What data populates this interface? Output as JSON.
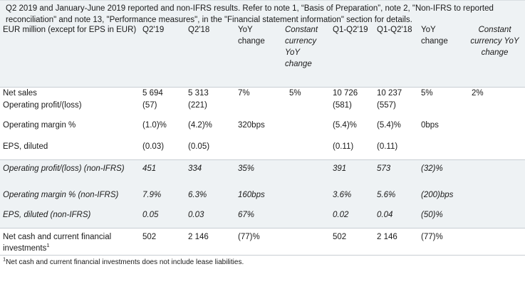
{
  "intro": "Q2 2019 and January-June 2019 reported and non-IFRS results. Refer to note 1, “Basis of Preparation”, note 2, \"Non-IFRS to reported reconciliation\" and note 13, \"Performance measures\", in the \"Financial statement information\" section for details.",
  "columns": [
    "EUR million (except for EPS in EUR)",
    "Q2'19",
    "Q2'18",
    "YoY change",
    "Constant currency YoY change",
    "Q1-Q2'19",
    "Q1-Q2'18",
    "YoY change",
    "Constant currency YoY change"
  ],
  "rows": [
    {
      "label": "Net sales",
      "cells": [
        "5 694",
        "5 313",
        "7%",
        "5%",
        "10 726",
        "10 237",
        "5%",
        "2%"
      ]
    },
    {
      "label": "Operating profit/(loss)",
      "cells": [
        "(57)",
        "(221)",
        "",
        "",
        "(581)",
        "(557)",
        "",
        ""
      ]
    },
    {
      "label": "Operating margin %",
      "cells": [
        "(1.0)%",
        "(4.2)%",
        "320bps",
        "",
        "(5.4)%",
        "(5.4)%",
        "0bps",
        ""
      ]
    },
    {
      "label": "EPS, diluted",
      "cells": [
        "(0.03)",
        "(0.05)",
        "",
        "",
        "(0.11)",
        "(0.11)",
        "",
        ""
      ]
    },
    {
      "label": "Operating profit/(loss) (non-IFRS)",
      "cells": [
        "451",
        "334",
        "35%",
        "",
        "391",
        "573",
        "(32)%",
        ""
      ]
    },
    {
      "label": "Operating margin % (non-IFRS)",
      "cells": [
        "7.9%",
        "6.3%",
        "160bps",
        "",
        "3.6%",
        "5.6%",
        "(200)bps",
        ""
      ]
    },
    {
      "label": "EPS, diluted (non-IFRS)",
      "cells": [
        "0.05",
        "0.03",
        "67%",
        "",
        "0.02",
        "0.04",
        "(50)%",
        ""
      ]
    },
    {
      "label": "Net cash and current financial investments",
      "cells": [
        "502",
        "2 146",
        "(77)%",
        "",
        "502",
        "2 146",
        "(77)%",
        ""
      ]
    }
  ],
  "superscript": "1",
  "footnote": "Net cash and current financial investments does not include lease liabilities.",
  "colors": {
    "shade": "#eef2f4",
    "rule": "#c8ced3",
    "text": "#1a1a1a"
  }
}
